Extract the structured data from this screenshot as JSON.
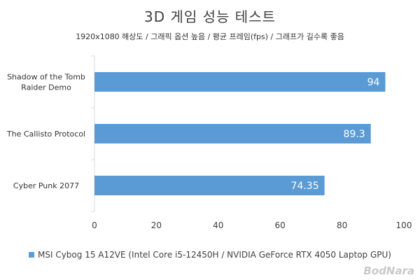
{
  "chart_data": {
    "type": "bar",
    "orientation": "horizontal",
    "title": "3D 게임 성능 테스트",
    "subtitle": "1920x1080 해상도 / 그래픽 옵션 높음 / 평균 프레임(fps) / 그래프가 길수록 좋음",
    "categories": [
      "Shadow of the Tomb Raider Demo",
      "The Callisto Protocol",
      "Cyber Punk 2077"
    ],
    "category_lines": [
      [
        "Shadow of the Tomb",
        "Raider Demo"
      ],
      [
        "The Callisto Protocol"
      ],
      [
        "Cyber Punk 2077"
      ]
    ],
    "series": [
      {
        "name": "MSI Cybog 15 A12VE (Intel Core i5-12450H / NVIDIA GeForce RTX 4050 Laptop GPU)",
        "values": [
          94,
          89.3,
          74.35
        ]
      }
    ],
    "data_labels": [
      "94",
      "89.3",
      "74.35"
    ],
    "xlim": [
      0,
      100
    ],
    "x_ticks": [
      0,
      20,
      40,
      60,
      80,
      100
    ],
    "grid": false,
    "legend_position": "bottom",
    "colors": {
      "bar": "#5b9bd5",
      "label": "#ffffff",
      "axis": "#d9d9d9"
    }
  },
  "watermark": "BodNara"
}
